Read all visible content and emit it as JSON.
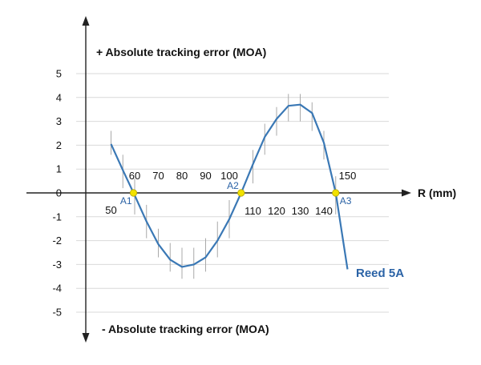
{
  "chart_data": {
    "type": "line",
    "title": "",
    "ylabel_top": "+ Absolute tracking error (MOA)",
    "ylabel_bottom": "- Absolute tracking error (MOA)",
    "xlabel": "R (mm)",
    "ylim": [
      -5,
      5
    ],
    "yticks": [
      "5",
      "4",
      "3",
      "2",
      "1",
      "0",
      "-1",
      "-2",
      "-3",
      "-4",
      "-5"
    ],
    "xlim": [
      40,
      165
    ],
    "grid": "horizontal",
    "series": [
      {
        "name": "Reed 5A",
        "color": "#3a78b5",
        "x": [
          50,
          55,
          60,
          65,
          70,
          75,
          80,
          85,
          90,
          95,
          100,
          105,
          110,
          115,
          120,
          125,
          130,
          135,
          140,
          145,
          150
        ],
        "y": [
          2.05,
          0.95,
          -0.1,
          -1.2,
          -2.15,
          -2.8,
          -3.1,
          -3.0,
          -2.7,
          -2.0,
          -1.1,
          0.0,
          1.2,
          2.35,
          3.1,
          3.65,
          3.7,
          3.35,
          2.1,
          0.0,
          -3.2
        ]
      }
    ],
    "error_bars": {
      "x": [
        50,
        55,
        60,
        65,
        70,
        75,
        80,
        85,
        90,
        95,
        100,
        110,
        115,
        120,
        125,
        130,
        135,
        140,
        145
      ],
      "upper": [
        2.6,
        1.6,
        0.6,
        -0.5,
        -1.5,
        -2.1,
        -2.3,
        -2.3,
        -1.9,
        -1.2,
        -0.3,
        1.8,
        2.9,
        3.6,
        4.15,
        4.15,
        3.8,
        2.6,
        0.7
      ],
      "lower": [
        1.6,
        0.2,
        -0.9,
        -1.9,
        -2.7,
        -3.3,
        -3.6,
        -3.6,
        -3.3,
        -2.7,
        -1.9,
        0.4,
        1.6,
        2.4,
        3.0,
        3.0,
        2.6,
        1.4,
        -0.9
      ]
    },
    "x_tick_labels": [
      {
        "value": 50,
        "label": "50",
        "side": "below"
      },
      {
        "value": 60,
        "label": "60",
        "side": "above"
      },
      {
        "value": 70,
        "label": "70",
        "side": "above"
      },
      {
        "value": 80,
        "label": "80",
        "side": "above"
      },
      {
        "value": 90,
        "label": "90",
        "side": "above"
      },
      {
        "value": 100,
        "label": "100",
        "side": "above"
      },
      {
        "value": 110,
        "label": "110",
        "side": "below"
      },
      {
        "value": 120,
        "label": "120",
        "side": "below"
      },
      {
        "value": 130,
        "label": "130",
        "side": "below"
      },
      {
        "value": 140,
        "label": "140",
        "side": "below"
      },
      {
        "value": 150,
        "label": "150",
        "side": "above"
      }
    ],
    "zero_crossings": [
      {
        "label": "A1",
        "x": 59.5
      },
      {
        "label": "A2",
        "x": 105
      },
      {
        "label": "A3",
        "x": 145
      }
    ],
    "marker_color": "#f2e200"
  }
}
